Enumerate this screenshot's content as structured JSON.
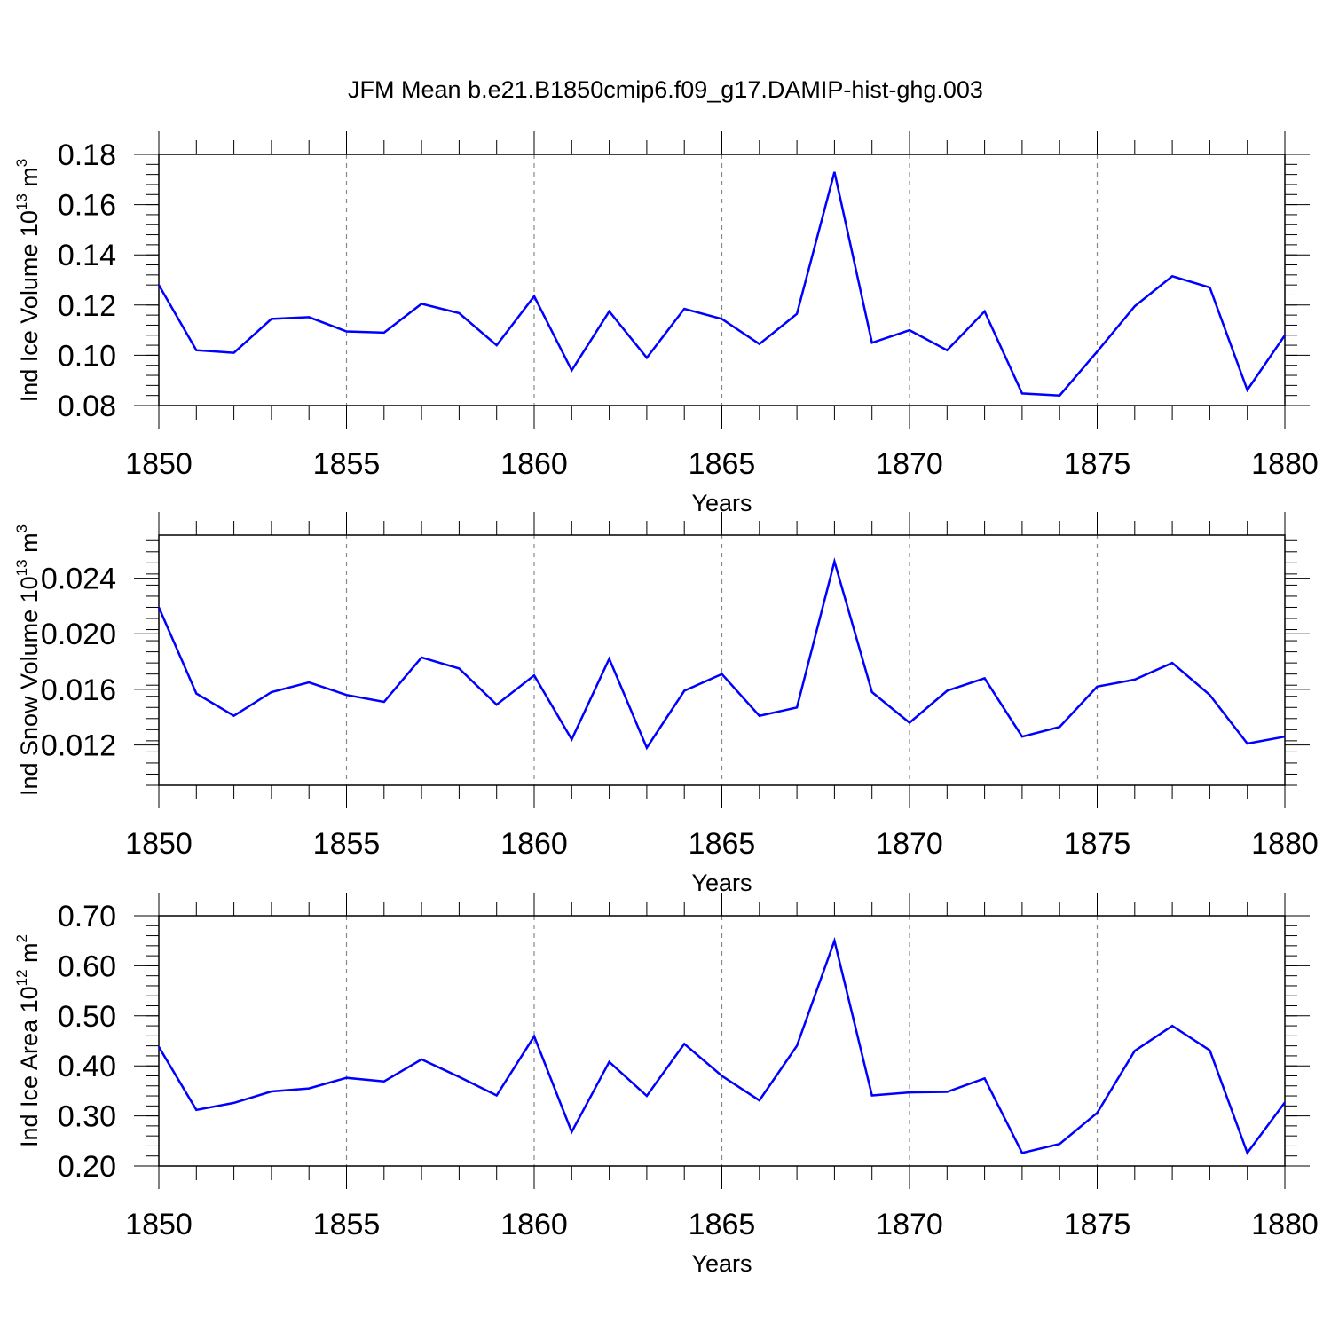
{
  "title": "JFM Mean b.e21.B1850cmip6.f09_g17.DAMIP-hist-ghg.003",
  "series_color": "#0000ff",
  "chart_data": [
    {
      "type": "line",
      "ylabel": "Ind Ice Volume 10",
      "ylabel_exp": "13",
      "ylabel_unit": " m",
      "ylabel_unit_exp": "3",
      "xlabel": "Years",
      "xlim": [
        1850,
        1880
      ],
      "ylim": [
        0.08,
        0.18
      ],
      "x_ticks": [
        "1850",
        "1855",
        "1860",
        "1865",
        "1870",
        "1875",
        "1880"
      ],
      "y_ticks": [
        "0.08",
        "0.10",
        "0.12",
        "0.14",
        "0.16",
        "0.18"
      ],
      "x": [
        1850,
        1851,
        1852,
        1853,
        1854,
        1855,
        1856,
        1857,
        1858,
        1859,
        1860,
        1861,
        1862,
        1863,
        1864,
        1865,
        1866,
        1867,
        1868,
        1869,
        1870,
        1871,
        1872,
        1873,
        1874,
        1875,
        1876,
        1877,
        1878,
        1879,
        1880
      ],
      "y": [
        0.128,
        0.102,
        0.101,
        0.1145,
        0.1152,
        0.1095,
        0.109,
        0.1205,
        0.1168,
        0.104,
        0.1235,
        0.094,
        0.1175,
        0.099,
        0.1185,
        0.1145,
        0.1045,
        0.1165,
        0.173,
        0.105,
        0.11,
        0.102,
        0.1175,
        0.0848,
        0.084,
        0.1015,
        0.1195,
        0.1315,
        0.127,
        0.0862,
        0.108
      ]
    },
    {
      "type": "line",
      "ylabel": "Ind Snow Volume 10",
      "ylabel_exp": "13",
      "ylabel_unit": " m",
      "ylabel_unit_exp": "3",
      "xlabel": "Years",
      "xlim": [
        1850,
        1880
      ],
      "ylim": [
        0.0091,
        0.0271
      ],
      "x_ticks": [
        "1850",
        "1855",
        "1860",
        "1865",
        "1870",
        "1875",
        "1880"
      ],
      "y_ticks": [
        "0.012",
        "0.016",
        "0.020",
        "0.024"
      ],
      "x": [
        1850,
        1851,
        1852,
        1853,
        1854,
        1855,
        1856,
        1857,
        1858,
        1859,
        1860,
        1861,
        1862,
        1863,
        1864,
        1865,
        1866,
        1867,
        1868,
        1869,
        1870,
        1871,
        1872,
        1873,
        1874,
        1875,
        1876,
        1877,
        1878,
        1879,
        1880
      ],
      "y": [
        0.0219,
        0.0157,
        0.0141,
        0.0158,
        0.0165,
        0.0156,
        0.0151,
        0.0183,
        0.0175,
        0.0149,
        0.017,
        0.0124,
        0.0182,
        0.0118,
        0.0159,
        0.0171,
        0.0141,
        0.0147,
        0.0252,
        0.0158,
        0.0136,
        0.0159,
        0.0168,
        0.0126,
        0.0133,
        0.0162,
        0.0167,
        0.0179,
        0.0156,
        0.0121,
        0.0126
      ]
    },
    {
      "type": "line",
      "ylabel": "Ind Ice Area 10",
      "ylabel_exp": "12",
      "ylabel_unit": " m",
      "ylabel_unit_exp": "2",
      "xlabel": "Years",
      "xlim": [
        1850,
        1880
      ],
      "ylim": [
        0.2,
        0.7
      ],
      "x_ticks": [
        "1850",
        "1855",
        "1860",
        "1865",
        "1870",
        "1875",
        "1880"
      ],
      "y_ticks": [
        "0.20",
        "0.30",
        "0.40",
        "0.50",
        "0.60",
        "0.70"
      ],
      "x": [
        1850,
        1851,
        1852,
        1853,
        1854,
        1855,
        1856,
        1857,
        1858,
        1859,
        1860,
        1861,
        1862,
        1863,
        1864,
        1865,
        1866,
        1867,
        1868,
        1869,
        1870,
        1871,
        1872,
        1873,
        1874,
        1875,
        1876,
        1877,
        1878,
        1879,
        1880
      ],
      "y": [
        0.438,
        0.312,
        0.326,
        0.349,
        0.355,
        0.376,
        0.369,
        0.413,
        0.378,
        0.341,
        0.459,
        0.268,
        0.408,
        0.34,
        0.444,
        0.38,
        0.331,
        0.44,
        0.65,
        0.341,
        0.347,
        0.348,
        0.375,
        0.226,
        0.244,
        0.306,
        0.43,
        0.48,
        0.431,
        0.226,
        0.327
      ]
    }
  ]
}
